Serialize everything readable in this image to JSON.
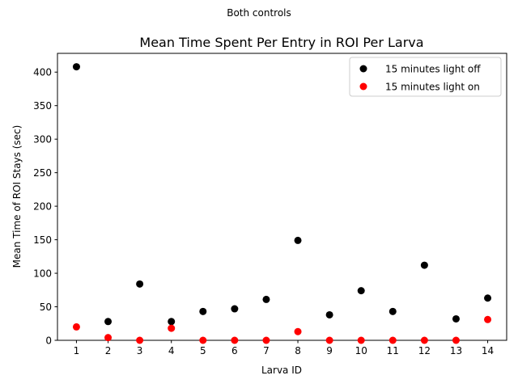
{
  "chart_data": {
    "type": "scatter",
    "suptitle": "Both controls",
    "title": "Mean Time Spent Per Entry in ROI Per Larva",
    "xlabel": "Larva ID",
    "ylabel": "Mean Time of ROI Stays (sec)",
    "x": [
      1,
      2,
      3,
      4,
      5,
      6,
      7,
      8,
      9,
      10,
      11,
      12,
      13,
      14
    ],
    "xlim": [
      0.4,
      14.6
    ],
    "ylim": [
      0,
      428
    ],
    "xticks": [
      "1",
      "2",
      "3",
      "4",
      "5",
      "6",
      "7",
      "8",
      "9",
      "10",
      "11",
      "12",
      "13",
      "14"
    ],
    "yticks": [
      "0",
      "50",
      "100",
      "150",
      "200",
      "250",
      "300",
      "350",
      "400"
    ],
    "yticks_values": [
      0,
      50,
      100,
      150,
      200,
      250,
      300,
      350,
      400
    ],
    "grid": false,
    "legend_position": "top-right",
    "series": [
      {
        "name": "15 minutes light off",
        "color": "#000000",
        "values": [
          408,
          28,
          84,
          28,
          43,
          47,
          61,
          149,
          38,
          74,
          43,
          112,
          32,
          63
        ]
      },
      {
        "name": "15 minutes light on",
        "color": "#ff0000",
        "values": [
          20,
          4,
          0,
          18,
          0,
          0,
          0,
          13,
          0,
          0,
          0,
          0,
          0,
          31
        ]
      }
    ]
  }
}
